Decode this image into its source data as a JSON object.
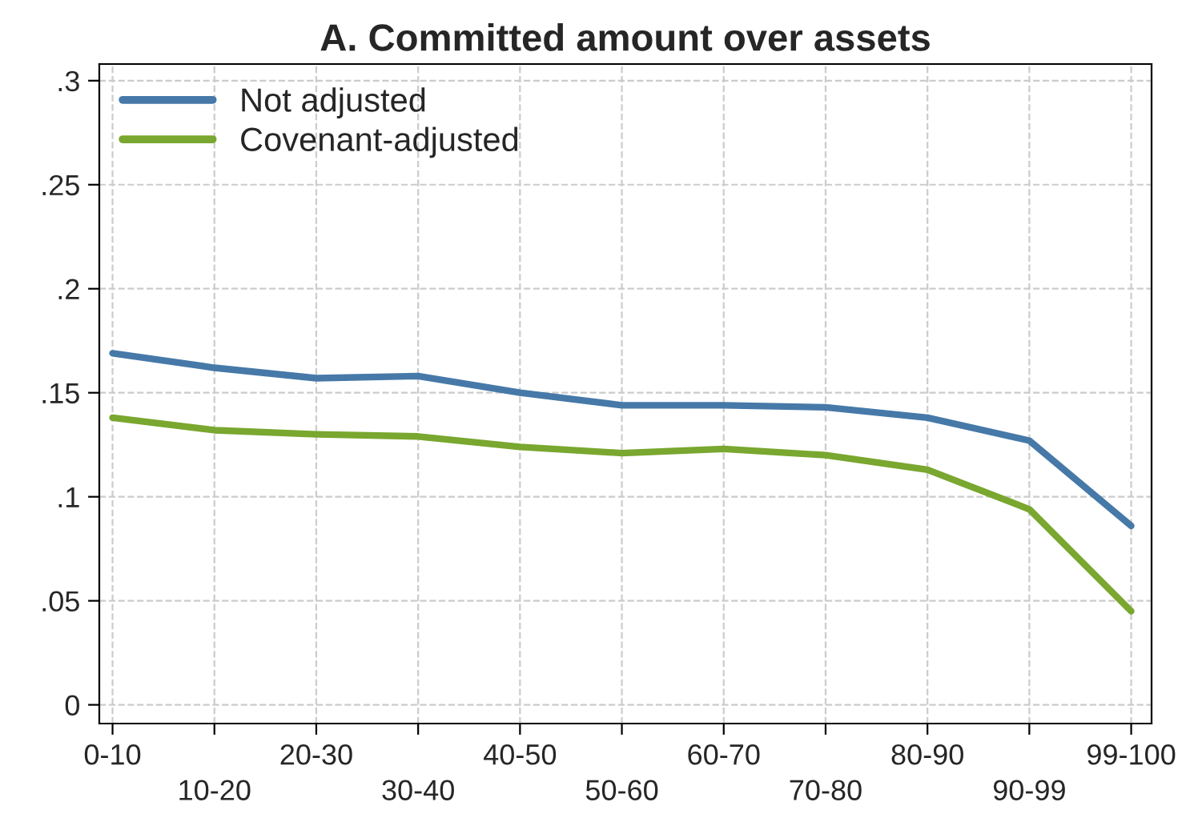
{
  "chart_data": {
    "type": "line",
    "title": "A. Committed amount over assets",
    "categories": [
      "0-10",
      "10-20",
      "20-30",
      "30-40",
      "40-50",
      "50-60",
      "60-70",
      "70-80",
      "80-90",
      "90-99",
      "99-100"
    ],
    "series": [
      {
        "name": "Not adjusted",
        "color": "#4679a8",
        "values": [
          0.169,
          0.162,
          0.157,
          0.158,
          0.15,
          0.144,
          0.144,
          0.143,
          0.138,
          0.127,
          0.086
        ]
      },
      {
        "name": "Covenant-adjusted",
        "color": "#79a72f",
        "values": [
          0.138,
          0.132,
          0.13,
          0.129,
          0.124,
          0.121,
          0.123,
          0.12,
          0.113,
          0.094,
          0.045
        ]
      }
    ],
    "ylim": [
      -0.009,
      0.308
    ],
    "yticks": [
      0,
      {
        "value": 0.05,
        "label": ".05"
      },
      {
        "value": 0.1,
        "label": ".1"
      },
      {
        "value": 0.15,
        "label": ".15"
      },
      {
        "value": 0.2,
        "label": ".2"
      },
      {
        "value": 0.25,
        "label": ".25"
      },
      {
        "value": 0.3,
        "label": ".3"
      }
    ],
    "grid": true,
    "legend": "top left",
    "marker": "none",
    "line_style": "solid"
  }
}
